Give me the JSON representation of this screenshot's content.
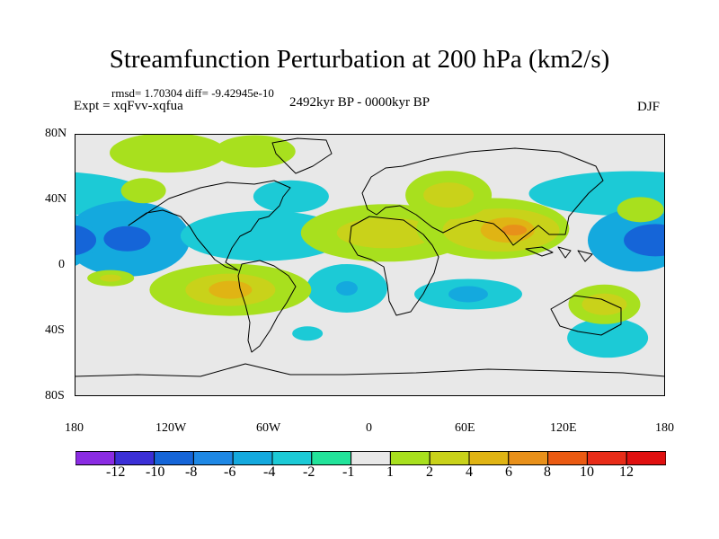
{
  "header": {
    "title": "Streamfunction Perturbation at 200 hPa (km2/s)",
    "stats": "rmsd= 1.70304  diff= -9.42945e-10",
    "experiment": "Expt = xqFvv-xqfua",
    "period": "2492kyr BP - 0000kyr BP",
    "season": "DJF"
  },
  "axes": {
    "lat_labels": [
      "80N",
      "40N",
      "0",
      "40S",
      "80S"
    ],
    "lon_labels": [
      "180",
      "120W",
      "60W",
      "0",
      "60E",
      "120E",
      "180"
    ]
  },
  "colorbar": {
    "labels": [
      "-12",
      "-10",
      "-8",
      "-6",
      "-4",
      "-2",
      "-1",
      "1",
      "2",
      "4",
      "6",
      "8",
      "10",
      "12"
    ],
    "colors": [
      "#8a2be2",
      "#3b2fd6",
      "#1565d8",
      "#1e88e5",
      "#14a9de",
      "#1ccad6",
      "#22e39a",
      "#e8e8e8",
      "#a8e01e",
      "#c9d21a",
      "#e0b414",
      "#e8901a",
      "#ea5a12",
      "#e82c18",
      "#e01010"
    ]
  },
  "field": {
    "background": "#e8e8e8",
    "blobs": [
      {
        "lon": 160,
        "lat": 49,
        "level": "-2"
      },
      {
        "lon": -148,
        "lat": 18,
        "level": "-4"
      },
      {
        "lon": -148,
        "lat": 18,
        "level": "-8"
      },
      {
        "lon": -48,
        "lat": 47,
        "level": "-2"
      },
      {
        "lon": -65,
        "lat": 20,
        "level": "-2"
      },
      {
        "lon": 163,
        "lat": 17,
        "level": "-4"
      },
      {
        "lon": 174,
        "lat": 17,
        "level": "-8"
      },
      {
        "lon": -14,
        "lat": -16,
        "level": "-2"
      },
      {
        "lon": -14,
        "lat": -16,
        "level": "-4"
      },
      {
        "lon": 60,
        "lat": -20,
        "level": "-2"
      },
      {
        "lon": 60,
        "lat": -20,
        "level": "-4"
      },
      {
        "lon": 145,
        "lat": -50,
        "level": "-2"
      },
      {
        "lon": 168,
        "lat": 55,
        "level": "-2"
      },
      {
        "lon": -38,
        "lat": -47,
        "level": "-2"
      },
      {
        "lon": -85,
        "lat": -17,
        "level": "1"
      },
      {
        "lon": -85,
        "lat": -17,
        "level": "2"
      },
      {
        "lon": -85,
        "lat": -17,
        "level": "4"
      },
      {
        "lon": -158,
        "lat": -9,
        "level": "1"
      },
      {
        "lon": -158,
        "lat": -9,
        "level": "2"
      },
      {
        "lon": 10,
        "lat": 22,
        "level": "1"
      },
      {
        "lon": 10,
        "lat": 22,
        "level": "2"
      },
      {
        "lon": 75,
        "lat": 25,
        "level": "1"
      },
      {
        "lon": 80,
        "lat": 24,
        "level": "2"
      },
      {
        "lon": 84,
        "lat": 24,
        "level": "4"
      },
      {
        "lon": 88,
        "lat": 24,
        "level": "6"
      },
      {
        "lon": 48,
        "lat": 48,
        "level": "1"
      },
      {
        "lon": 48,
        "lat": 48,
        "level": "2"
      },
      {
        "lon": -123,
        "lat": 77,
        "level": "1"
      },
      {
        "lon": -70,
        "lat": 78,
        "level": "1"
      },
      {
        "lon": 143,
        "lat": -27,
        "level": "1"
      },
      {
        "lon": 143,
        "lat": -27,
        "level": "2"
      },
      {
        "lon": -138,
        "lat": 51,
        "level": "1"
      },
      {
        "lon": 165,
        "lat": 38,
        "level": "1"
      }
    ]
  }
}
